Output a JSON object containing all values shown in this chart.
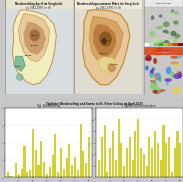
{
  "map1_title1": "Niederschlag April im Vergleich",
  "map1_title2": "zu 1961-1990 (in %)",
  "map2_title1": "Niederschlagssummen März im Vergleich",
  "map2_title2": "zu 1961-1990 (in %)",
  "bottom_title": "Täglicher Niederschlag und Sonne in St. Peter-Ording im April 2023",
  "chart1_title": "Tägl. Niederschlag",
  "chart2_title": "Tägliche Sonnenstunden",
  "bg_color": "#c8c8c8",
  "panel_bg": "#ffffff",
  "title_bar_bg": "#e8e4d0",
  "title_bar_border": "#b0a070",
  "map1_water": "#c8d8e0",
  "map1_zones": {
    "outer_yellow": "#f0eebc",
    "mid_peach": "#e8c898",
    "inner_brown": "#c8986a",
    "dark_brown": "#a07040",
    "teal": "#70b898"
  },
  "map1_border": "#c09060",
  "map2_bg": "#e8e0cc",
  "map2_zones": {
    "outer_peach": "#e8c898",
    "mid_tan": "#d4a060",
    "inner_brown": "#b87840",
    "dark_brown": "#8a5820",
    "small_dark": "#5a3810",
    "yellow_patch": "#e8e090"
  },
  "map2_border": "#c09040",
  "bar_values_precip": [
    0.3,
    0.1,
    0.0,
    0.8,
    0.2,
    0.5,
    1.8,
    0.3,
    0.4,
    2.8,
    1.6,
    0.7,
    2.1,
    0.9,
    0.2,
    0.6,
    1.3,
    2.5,
    0.3,
    1.7,
    0.5,
    1.1,
    1.9,
    0.7,
    1.2,
    0.4,
    3.1,
    1.5,
    0.8,
    2.3
  ],
  "bar_values_sun": [
    3,
    7,
    9,
    1,
    5,
    8,
    3,
    10,
    6,
    2,
    5,
    7,
    3,
    8,
    10,
    5,
    4,
    2,
    7,
    5,
    8,
    6,
    3,
    9,
    6,
    7,
    1,
    5,
    8,
    6
  ],
  "bar_color": "#d4d030",
  "bottom_bg": "#f0f0f0",
  "bottom_title_bg": "#dce0e8",
  "radar_top_bg": "#a8c890",
  "radar_bot_bg": "#1a2a60",
  "right_title_bg": "#e8e8e8"
}
